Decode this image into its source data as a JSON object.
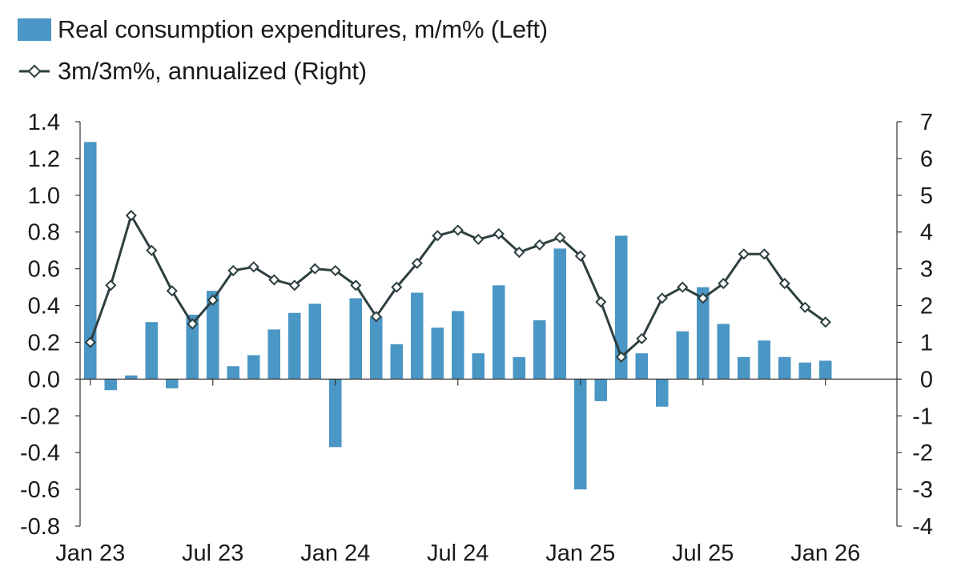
{
  "chart_data": {
    "type": "bar",
    "title": "",
    "legend": [
      {
        "label": "Real consumption expenditures, m/m% (Left)",
        "kind": "bar",
        "color": "#4a96c4"
      },
      {
        "label": "3m/3m%, annualized (Right)",
        "kind": "line",
        "color": "#2d3f40"
      }
    ],
    "x_tick_labels": [
      "Jan 23",
      "Jul 23",
      "Jan 24",
      "Jul 24",
      "Jan 25",
      "Jul 25",
      "Jan 26"
    ],
    "x_tick_months": [
      0,
      6,
      12,
      18,
      24,
      30,
      36
    ],
    "months": 37,
    "left_axis": {
      "min": -0.8,
      "max": 1.4,
      "ticks": [
        "1.4",
        "1.2",
        "1.0",
        "0.8",
        "0.6",
        "0.4",
        "0.2",
        "0.0",
        "-0.2",
        "-0.4",
        "-0.6",
        "-0.8"
      ],
      "tick_values": [
        1.4,
        1.2,
        1.0,
        0.8,
        0.6,
        0.4,
        0.2,
        0.0,
        -0.2,
        -0.4,
        -0.6,
        -0.8
      ]
    },
    "right_axis": {
      "min": -4,
      "max": 7,
      "ticks": [
        "7",
        "6",
        "5",
        "4",
        "3",
        "2",
        "1",
        "0",
        "-1",
        "-2",
        "-3",
        "-4"
      ],
      "tick_values": [
        7,
        6,
        5,
        4,
        3,
        2,
        1,
        0,
        -1,
        -2,
        -3,
        -4
      ]
    },
    "series": [
      {
        "name": "Real consumption expenditures, m/m% (Left)",
        "type": "bar",
        "axis": "left",
        "values": [
          1.29,
          -0.06,
          0.02,
          0.31,
          -0.05,
          0.35,
          0.48,
          0.07,
          0.13,
          0.27,
          0.36,
          0.41,
          -0.37,
          0.44,
          0.34,
          0.19,
          0.47,
          0.28,
          0.37,
          0.14,
          0.51,
          0.12,
          0.32,
          0.71,
          -0.6,
          -0.12,
          0.78,
          0.14,
          -0.15,
          0.26,
          0.5,
          0.3,
          0.12,
          0.21,
          0.12,
          0.09,
          0.1
        ]
      },
      {
        "name": "3m/3m%, annualized (Right)",
        "type": "line",
        "axis": "right",
        "values": [
          1.0,
          2.55,
          4.45,
          3.5,
          2.4,
          1.5,
          2.15,
          2.95,
          3.05,
          2.7,
          2.55,
          3.0,
          2.95,
          2.55,
          1.7,
          2.5,
          3.15,
          3.9,
          4.05,
          3.8,
          3.95,
          3.45,
          3.65,
          3.85,
          3.35,
          2.1,
          0.6,
          1.1,
          2.2,
          2.5,
          2.2,
          2.6,
          3.4,
          3.4,
          2.6,
          1.95,
          1.55
        ]
      }
    ]
  }
}
